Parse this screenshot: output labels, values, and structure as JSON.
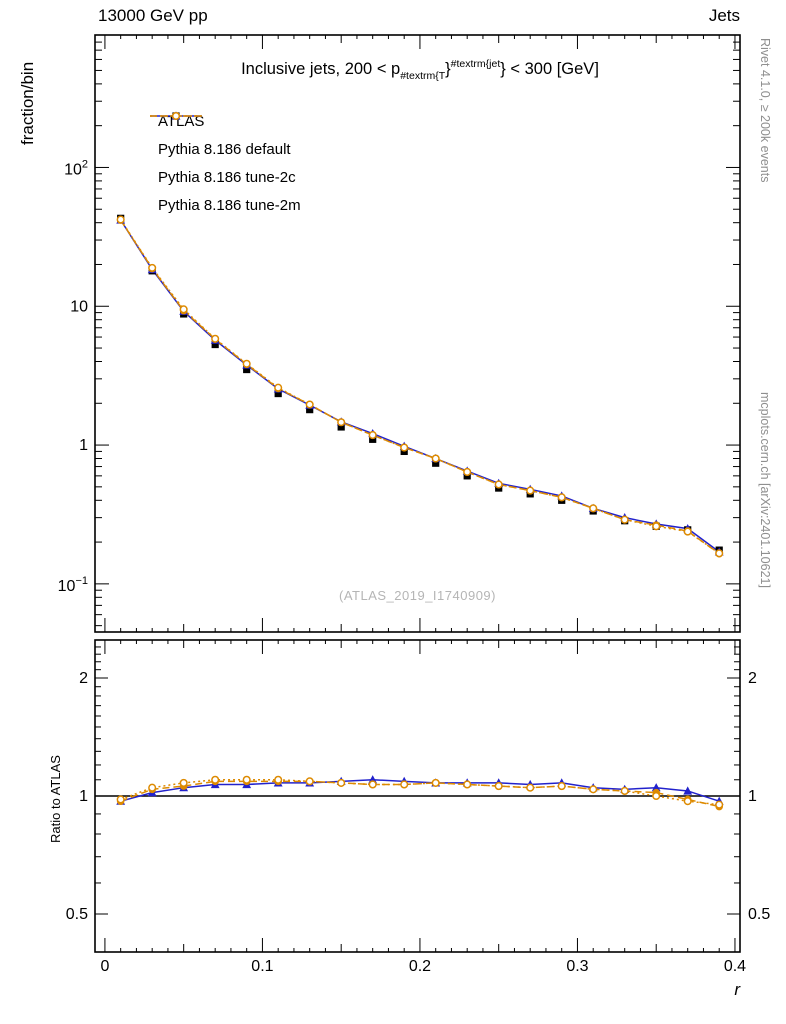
{
  "header": {
    "left": "13000 GeV pp",
    "right": "Jets"
  },
  "side_notes": {
    "top_right": "Rivet 4.1.0, ≥ 200k events",
    "bottom_right": "mcplots.cern.ch [arXiv:2401.10621]"
  },
  "watermark": "(ATLAS_2019_I1740909)",
  "chart_data": {
    "type": "line",
    "title": "Inclusive jets, 200 < p_{#textrm{T}}^{#textrm{jet}} < 300 [GeV]",
    "title_segments": [
      {
        "t": "Inclusive jets, 200 < p",
        "s": "n"
      },
      {
        "t": "#textrm{T",
        "s": "sub"
      },
      {
        "t": "}",
        "s": "n"
      },
      {
        "t": "#textrm{jet",
        "s": "sup"
      },
      {
        "t": "}",
        "s": "n"
      },
      {
        "t": " < 300 [GeV]",
        "s": "n"
      }
    ],
    "xlabel": "r",
    "ylabel_main": "fraction/bin",
    "ylabel_ratio": "Ratio to ATLAS",
    "legend_position": "top-left",
    "grid": false,
    "x": [
      0.01,
      0.03,
      0.05,
      0.07,
      0.09,
      0.11,
      0.13,
      0.15,
      0.17,
      0.19,
      0.21,
      0.23,
      0.25,
      0.27,
      0.29,
      0.31,
      0.33,
      0.35,
      0.37,
      0.39
    ],
    "series": [
      {
        "name": "ATLAS",
        "marker": "square",
        "color": "#000000",
        "line": "none",
        "values": [
          43,
          18,
          8.8,
          5.3,
          3.5,
          2.35,
          1.8,
          1.35,
          1.1,
          0.9,
          0.74,
          0.6,
          0.49,
          0.445,
          0.4,
          0.335,
          0.285,
          0.26,
          0.245,
          0.175
        ]
      },
      {
        "name": "Pythia 8.186 default",
        "marker": "triangle",
        "color": "#2222cc",
        "line": "solid",
        "values": [
          41.8,
          18.4,
          9.2,
          5.7,
          3.77,
          2.54,
          1.94,
          1.47,
          1.21,
          0.98,
          0.8,
          0.65,
          0.53,
          0.48,
          0.43,
          0.35,
          0.3,
          0.27,
          0.25,
          0.17
        ],
        "ratio": [
          0.97,
          1.02,
          1.05,
          1.07,
          1.07,
          1.08,
          1.08,
          1.09,
          1.1,
          1.09,
          1.08,
          1.08,
          1.08,
          1.07,
          1.08,
          1.05,
          1.04,
          1.05,
          1.03,
          0.97
        ]
      },
      {
        "name": "Pythia 8.186 tune-2c",
        "marker": "circle",
        "color": "#dd8a00",
        "line": "dashed",
        "values": [
          41.8,
          18.7,
          9.3,
          5.8,
          3.82,
          2.56,
          1.96,
          1.46,
          1.18,
          0.96,
          0.8,
          0.64,
          0.52,
          0.47,
          0.42,
          0.35,
          0.29,
          0.265,
          0.24,
          0.165
        ],
        "ratio": [
          0.97,
          1.04,
          1.06,
          1.09,
          1.09,
          1.09,
          1.09,
          1.08,
          1.07,
          1.07,
          1.08,
          1.07,
          1.06,
          1.05,
          1.06,
          1.04,
          1.03,
          1.02,
          0.98,
          0.94
        ]
      },
      {
        "name": "Pythia 8.186 tune-2m",
        "marker": "circle-open",
        "color": "#dd8a00",
        "line": "dotted",
        "values": [
          42.1,
          18.9,
          9.5,
          5.83,
          3.85,
          2.59,
          1.96,
          1.46,
          1.18,
          0.96,
          0.8,
          0.64,
          0.52,
          0.47,
          0.42,
          0.35,
          0.29,
          0.26,
          0.238,
          0.166
        ],
        "ratio": [
          0.98,
          1.05,
          1.08,
          1.1,
          1.1,
          1.1,
          1.09,
          1.08,
          1.07,
          1.07,
          1.08,
          1.07,
          1.06,
          1.05,
          1.06,
          1.04,
          1.03,
          1.0,
          0.97,
          0.95
        ]
      }
    ],
    "axes": {
      "x": {
        "min": -0.0063,
        "max": 0.4032,
        "ticks": [
          0,
          0.1,
          0.2,
          0.3,
          0.4
        ],
        "tick_labels": [
          "0",
          "0.1",
          "0.2",
          "0.3",
          "0.4"
        ]
      },
      "y_main": {
        "scale": "log",
        "min": 0.045,
        "max": 900,
        "tick_labels": [
          {
            "v": 100,
            "t": "10",
            "e": "2"
          },
          {
            "v": 10,
            "t": "10",
            "e": ""
          },
          {
            "v": 1,
            "t": "1",
            "e": ""
          },
          {
            "v": 0.1,
            "t": "10",
            "e": "−1"
          }
        ]
      },
      "y_ratio": {
        "scale": "log",
        "min": 0.4,
        "max": 2.5,
        "reference_line": 1,
        "tick_labels": [
          {
            "v": 2,
            "t": "2"
          },
          {
            "v": 1,
            "t": "1"
          },
          {
            "v": 0.5,
            "t": "0.5"
          }
        ],
        "minor_ticks": [
          0.4,
          0.6,
          0.7,
          0.8,
          0.9,
          1.1,
          1.2,
          1.3,
          1.4,
          1.5,
          1.6,
          1.7,
          1.8,
          1.9,
          2.1,
          2.2,
          2.3,
          2.4
        ]
      }
    }
  }
}
